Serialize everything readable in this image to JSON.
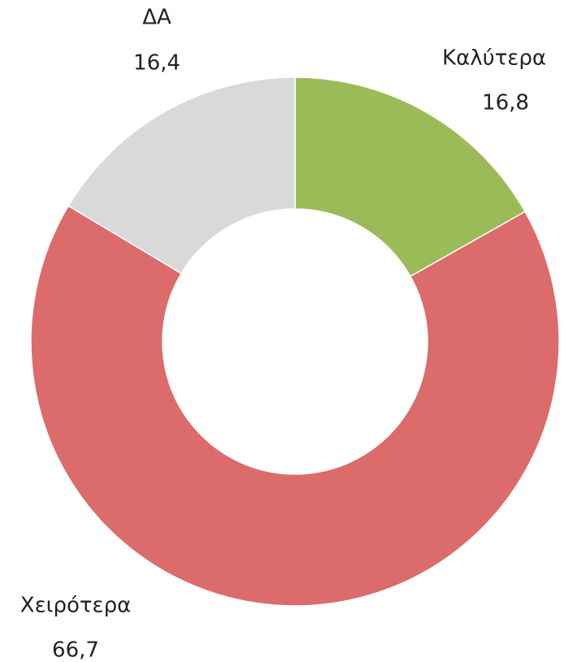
{
  "chart_data": {
    "type": "donut",
    "categories": [
      "Καλύτερα",
      "Χειρότερα",
      "ΔΑ"
    ],
    "values": [
      16.8,
      66.7,
      16.4
    ],
    "value_labels": [
      "16,8",
      "66,7",
      "16,4"
    ],
    "colors": [
      "#9bbb59",
      "#dc6b6b",
      "#d9d9d9"
    ]
  }
}
